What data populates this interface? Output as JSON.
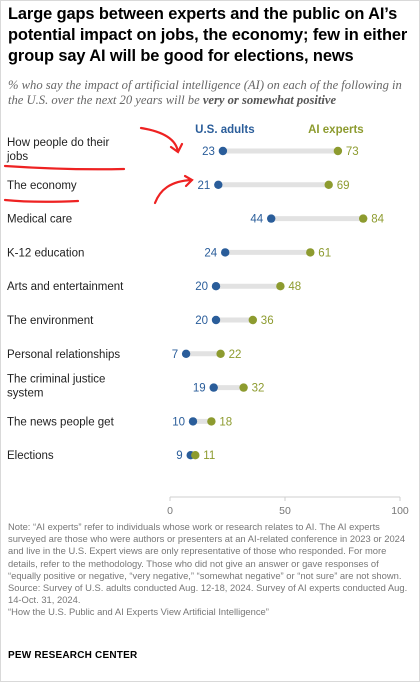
{
  "title": "Large gaps between experts and the public on AI’s potential impact on jobs, the economy; few in either group say AI will be good for elections, news",
  "subtitle_parts": {
    "before": "% who say the impact of artificial intelligence (AI) on each of the following in the U.S. over the next 20 years will be ",
    "emphasis": "very or somewhat positive"
  },
  "notes": {
    "note": "Note: “AI experts” refer to individuals whose work or research relates to AI. The AI experts surveyed are those who were authors or presenters at an AI-related conference in 2023 or 2024 and live in the U.S. Expert views are only representative of those who responded. For more details, refer to the methodology. Those who did not give an answer or gave responses of “equally positive or negative, “very negative,” “somewhat negative” or “not sure” are not shown.",
    "source": "Source: Survey of U.S. adults conducted Aug. 12-18, 2024. Survey of AI experts conducted Aug. 14-Oct. 31, 2024.",
    "report": "“How the U.S. Public and AI Experts View Artificial Intelligence”"
  },
  "brand": "PEW RESEARCH CENTER",
  "colors": {
    "us_adults": "#2a5d9a",
    "ai_experts": "#8d9b2f",
    "connector": "#e2e2e2",
    "annotation": "#ee2222",
    "axis": "#cfcfcf"
  },
  "chart_data": {
    "type": "dot-plot",
    "xlim": [
      0,
      100
    ],
    "x_ticks": [
      0,
      50,
      100
    ],
    "legend_position": "top",
    "categories": [
      "How people do their jobs",
      "The economy",
      "Medical care",
      "K-12 education",
      "Arts and entertainment",
      "The environment",
      "Personal relationships",
      "The criminal justice system",
      "The news people get",
      "Elections"
    ],
    "series": [
      {
        "name": "U.S. adults",
        "values": [
          23,
          21,
          44,
          24,
          20,
          20,
          7,
          19,
          10,
          9
        ]
      },
      {
        "name": "AI experts",
        "values": [
          73,
          69,
          84,
          61,
          48,
          36,
          22,
          32,
          18,
          11
        ]
      }
    ]
  }
}
